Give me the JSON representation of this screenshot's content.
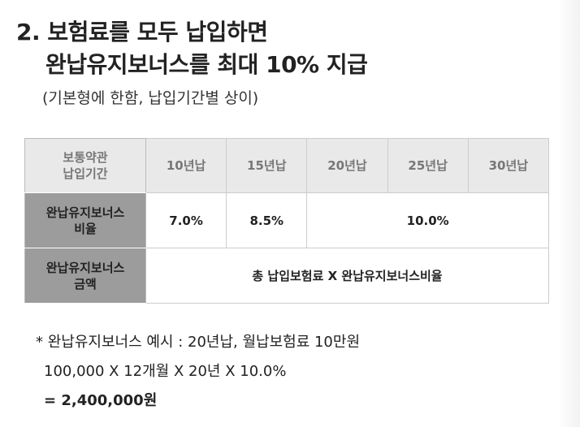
{
  "header": {
    "title_lines": [
      "2. 보험료를 모두 납입하면",
      "완납유지보너스를 최대 10% 지급"
    ],
    "subtitle": "(기본형에 한함, 납입기간별 상이)"
  },
  "table": {
    "header": {
      "label": [
        "보통약관",
        "납입기간"
      ],
      "columns": [
        "10년납",
        "15년납",
        "20년납",
        "25년납",
        "30년납"
      ]
    },
    "rows": [
      {
        "label": [
          "완납유지보너스",
          "비율"
        ],
        "cells": [
          "7.0%",
          "8.5%",
          "10.0%"
        ]
      },
      {
        "label": [
          "완납유지보너스",
          "금액"
        ],
        "cells": [
          "총 납입보험료 X 완납유지보너스비율"
        ]
      }
    ]
  },
  "note": {
    "lines": [
      "* 완납유지보너스 예시 : 20년납, 월납보험료 10만원",
      "100,000 X 12개월 X 20년 X 10.0%",
      "= 2,400,000원"
    ]
  }
}
